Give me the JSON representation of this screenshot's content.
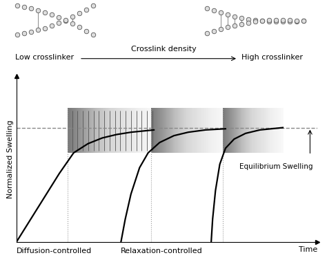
{
  "chart_data": {
    "type": "line",
    "x_label": "Time",
    "y_label": "Normalized Swelling",
    "xlim": [
      0,
      10.5
    ],
    "ylim": [
      0,
      1.45
    ],
    "xticks": [],
    "yticks": [],
    "tick_labels": false,
    "header": {
      "left": "Low crosslinker",
      "center": "Crosslink density",
      "right": "High crosslinker"
    },
    "equilibrium": {
      "value": 1.0,
      "label": "Equilibrium Swelling",
      "line_style": "dashed",
      "color": "#888888"
    },
    "regimes": [
      {
        "label": "Diffusion-controlled",
        "x": 0
      },
      {
        "label": "Relaxation-controlled",
        "x": 3.65
      }
    ],
    "transition_regions": [
      [
        1.8,
        4.9
      ],
      [
        4.7,
        7.3
      ],
      [
        7.2,
        9.3
      ]
    ],
    "transition_band": [
      0.78,
      1.17
    ],
    "series": [
      {
        "color": "#000000",
        "x": [
          0,
          0.8,
          1.5,
          2.0,
          2.5,
          3.0,
          3.5,
          4.0,
          4.8
        ],
        "values": [
          0,
          0.32,
          0.6,
          0.78,
          0.86,
          0.91,
          0.94,
          0.96,
          0.98
        ]
      },
      {
        "color": "#000000",
        "x": [
          3.65,
          3.8,
          4.0,
          4.3,
          4.6,
          5.0,
          5.5,
          6.0,
          6.6,
          7.3
        ],
        "values": [
          0,
          0.2,
          0.42,
          0.65,
          0.78,
          0.87,
          0.93,
          0.96,
          0.98,
          0.99
        ]
      },
      {
        "color": "#000000",
        "x": [
          6.8,
          6.85,
          6.95,
          7.1,
          7.3,
          7.6,
          8.0,
          8.5,
          9.3
        ],
        "values": [
          0,
          0.2,
          0.45,
          0.68,
          0.82,
          0.9,
          0.95,
          0.98,
          1.0
        ]
      }
    ]
  }
}
